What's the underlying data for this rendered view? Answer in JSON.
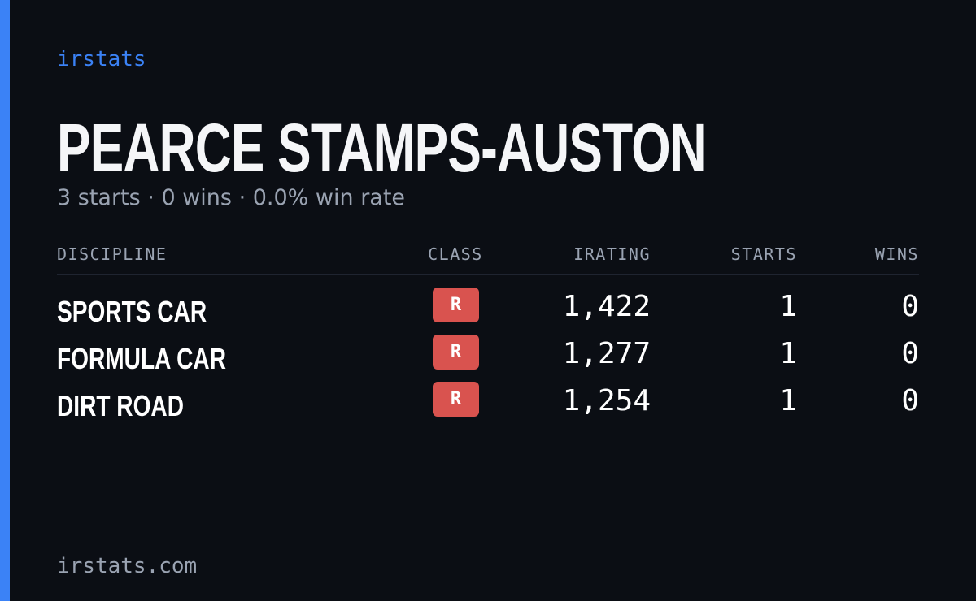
{
  "brand": "irstats",
  "profile": {
    "name": "PEARCE STAMPS-AUSTON",
    "summary": "3 starts · 0 wins · 0.0% win rate"
  },
  "table": {
    "headers": [
      "DISCIPLINE",
      "CLASS",
      "IRATING",
      "STARTS",
      "WINS"
    ],
    "rows": [
      [
        "SPORTS CAR",
        "R",
        "1,422",
        "1",
        "0"
      ],
      [
        "FORMULA CAR",
        "R",
        "1,277",
        "1",
        "0"
      ],
      [
        "DIRT ROAD",
        "R",
        "1,254",
        "1",
        "0"
      ]
    ]
  },
  "footer": "irstats.com"
}
